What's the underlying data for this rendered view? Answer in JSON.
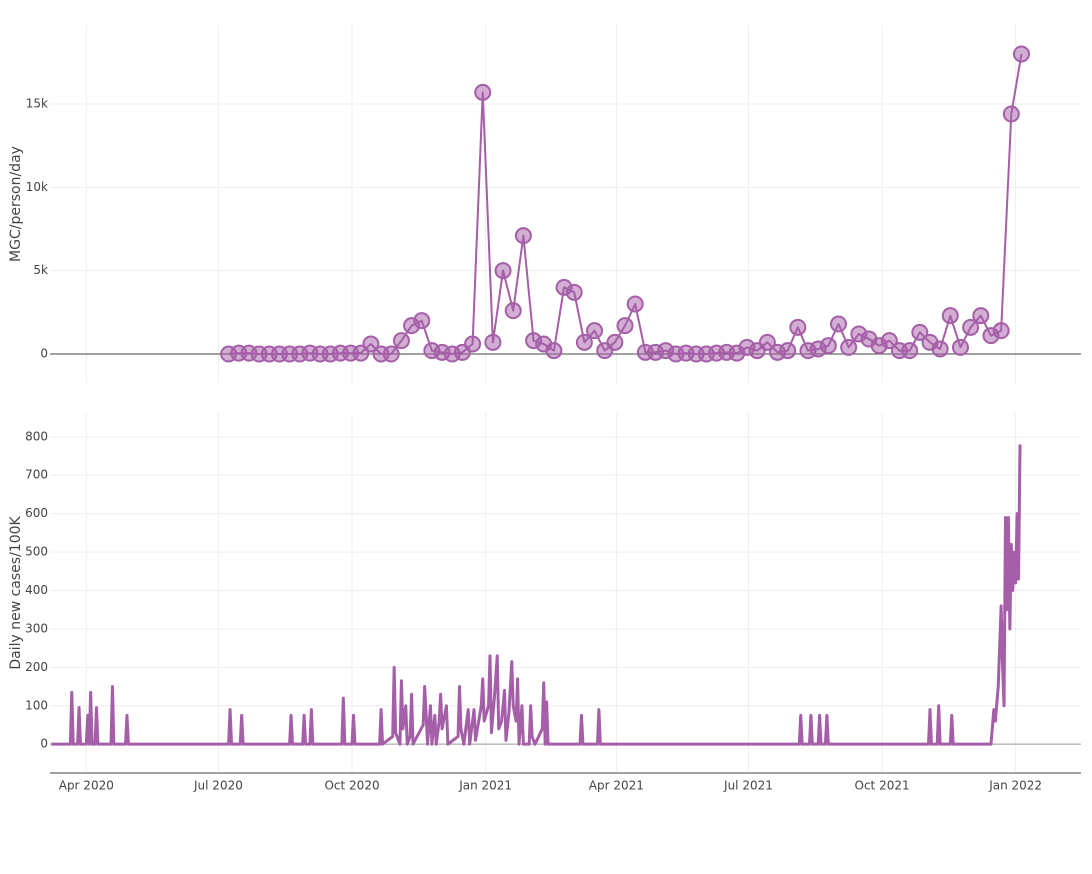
{
  "chart_data": [
    {
      "type": "line",
      "ylabel": "MGC/person/day",
      "markers": true,
      "color": "#a55ea8",
      "xlim": [
        "2020-03-07",
        "2022-02-15"
      ],
      "ylim": [
        -1740,
        19740
      ],
      "yticks": [
        0,
        {
          "value": 5000,
          "label": "5k"
        },
        {
          "value": 10000,
          "label": "10k"
        },
        {
          "value": 15000,
          "label": "15k"
        }
      ],
      "x": [
        "2020-07-08",
        "2020-07-15",
        "2020-07-22",
        "2020-07-29",
        "2020-08-05",
        "2020-08-12",
        "2020-08-19",
        "2020-08-26",
        "2020-09-02",
        "2020-09-09",
        "2020-09-16",
        "2020-09-23",
        "2020-09-30",
        "2020-10-07",
        "2020-10-14",
        "2020-10-21",
        "2020-10-28",
        "2020-11-04",
        "2020-11-11",
        "2020-11-18",
        "2020-11-25",
        "2020-12-02",
        "2020-12-09",
        "2020-12-16",
        "2020-12-23",
        "2020-12-30",
        "2021-01-06",
        "2021-01-13",
        "2021-01-20",
        "2021-01-27",
        "2021-02-03",
        "2021-02-10",
        "2021-02-17",
        "2021-02-24",
        "2021-03-03",
        "2021-03-10",
        "2021-03-17",
        "2021-03-24",
        "2021-03-31",
        "2021-04-07",
        "2021-04-14",
        "2021-04-21",
        "2021-04-28",
        "2021-05-05",
        "2021-05-12",
        "2021-05-19",
        "2021-05-26",
        "2021-06-02",
        "2021-06-09",
        "2021-06-16",
        "2021-06-23",
        "2021-06-30",
        "2021-07-07",
        "2021-07-14",
        "2021-07-21",
        "2021-07-28",
        "2021-08-04",
        "2021-08-11",
        "2021-08-18",
        "2021-08-25",
        "2021-09-01",
        "2021-09-08",
        "2021-09-15",
        "2021-09-22",
        "2021-09-29",
        "2021-10-06",
        "2021-10-13",
        "2021-10-20",
        "2021-10-27",
        "2021-11-03",
        "2021-11-10",
        "2021-11-17",
        "2021-11-24",
        "2021-12-01",
        "2021-12-08",
        "2021-12-15",
        "2021-12-22",
        "2021-12-29",
        "2022-01-05"
      ],
      "values": [
        0,
        50,
        50,
        0,
        0,
        0,
        0,
        0,
        50,
        0,
        0,
        50,
        50,
        50,
        600,
        0,
        0,
        800,
        1700,
        2000,
        200,
        100,
        0,
        100,
        600,
        15700,
        700,
        5000,
        2600,
        7100,
        800,
        600,
        200,
        4000,
        3700,
        700,
        1400,
        200,
        700,
        1700,
        3000,
        100,
        100,
        200,
        0,
        50,
        0,
        0,
        50,
        100,
        50,
        400,
        200,
        700,
        100,
        200,
        1600,
        200,
        300,
        500,
        1800,
        400,
        1200,
        900,
        500,
        800,
        200,
        200,
        1300,
        700,
        300,
        2300,
        400,
        1600,
        2300,
        1100,
        1400,
        14400,
        18000
      ]
    },
    {
      "type": "line",
      "ylabel": "Daily new cases/100K",
      "markers": false,
      "color": "#a55ea8",
      "xlim": [
        "2020-03-07",
        "2022-02-15"
      ],
      "ylim": [
        -75,
        862
      ],
      "yticks": [
        0,
        100,
        200,
        300,
        400,
        500,
        600,
        700,
        800
      ],
      "xticks": [
        {
          "value": "2020-04-01",
          "label": "Apr 2020"
        },
        {
          "value": "2020-07-01",
          "label": "Jul 2020"
        },
        {
          "value": "2020-10-01",
          "label": "Oct 2020"
        },
        {
          "value": "2021-01-01",
          "label": "Jan 2021"
        },
        {
          "value": "2021-04-01",
          "label": "Apr 2021"
        },
        {
          "value": "2021-07-01",
          "label": "Jul 2021"
        },
        {
          "value": "2021-10-01",
          "label": "Oct 2021"
        },
        {
          "value": "2022-01-01",
          "label": "Jan 2022"
        }
      ],
      "x": [
        "2020-03-08",
        "2020-03-21",
        "2020-03-22",
        "2020-03-23",
        "2020-03-26",
        "2020-03-27",
        "2020-03-28",
        "2020-04-01",
        "2020-04-02",
        "2020-04-03",
        "2020-04-04",
        "2020-04-05",
        "2020-04-07",
        "2020-04-08",
        "2020-04-09",
        "2020-04-18",
        "2020-04-19",
        "2020-04-20",
        "2020-04-28",
        "2020-04-29",
        "2020-04-30",
        "2020-07-08",
        "2020-07-09",
        "2020-07-10",
        "2020-07-16",
        "2020-07-17",
        "2020-07-18",
        "2020-08-19",
        "2020-08-20",
        "2020-08-21",
        "2020-08-28",
        "2020-08-29",
        "2020-08-30",
        "2020-09-02",
        "2020-09-03",
        "2020-09-04",
        "2020-09-24",
        "2020-09-25",
        "2020-09-26",
        "2020-10-01",
        "2020-10-02",
        "2020-10-03",
        "2020-10-20",
        "2020-10-21",
        "2020-10-22",
        "2020-10-29",
        "2020-10-30",
        "2020-10-31",
        "2020-11-03",
        "2020-11-04",
        "2020-11-05",
        "2020-11-07",
        "2020-11-08",
        "2020-11-10",
        "2020-11-11",
        "2020-11-12",
        "2020-11-19",
        "2020-11-20",
        "2020-11-21",
        "2020-11-22",
        "2020-11-24",
        "2020-11-25",
        "2020-11-27",
        "2020-11-28",
        "2020-11-30",
        "2020-12-01",
        "2020-12-02",
        "2020-12-05",
        "2020-12-06",
        "2020-12-13",
        "2020-12-14",
        "2020-12-15",
        "2020-12-17",
        "2020-12-20",
        "2020-12-21",
        "2020-12-24",
        "2020-12-25",
        "2020-12-29",
        "2020-12-30",
        "2020-12-31",
        "2021-01-03",
        "2021-01-04",
        "2021-01-05",
        "2021-01-07",
        "2021-01-09",
        "2021-01-10",
        "2021-01-12",
        "2021-01-14",
        "2021-01-15",
        "2021-01-17",
        "2021-01-19",
        "2021-01-20",
        "2021-01-22",
        "2021-01-23",
        "2021-01-24",
        "2021-01-26",
        "2021-01-27",
        "2021-01-31",
        "2021-02-01",
        "2021-02-02",
        "2021-02-04",
        "2021-02-09",
        "2021-02-10",
        "2021-02-11",
        "2021-02-12",
        "2021-02-13",
        "2021-03-07",
        "2021-03-08",
        "2021-03-09",
        "2021-03-19",
        "2021-03-20",
        "2021-03-21",
        "2021-08-05",
        "2021-08-06",
        "2021-08-07",
        "2021-08-12",
        "2021-08-13",
        "2021-08-14",
        "2021-08-18",
        "2021-08-19",
        "2021-08-20",
        "2021-08-23",
        "2021-08-24",
        "2021-08-25",
        "2021-11-02",
        "2021-11-03",
        "2021-11-04",
        "2021-11-08",
        "2021-11-09",
        "2021-11-10",
        "2021-11-17",
        "2021-11-18",
        "2021-11-19",
        "2021-12-15",
        "2021-12-17",
        "2021-12-18",
        "2021-12-20",
        "2021-12-22",
        "2021-12-23",
        "2021-12-24",
        "2021-12-25",
        "2021-12-26",
        "2021-12-27",
        "2021-12-28",
        "2021-12-29",
        "2021-12-30",
        "2021-12-31",
        "2022-01-01",
        "2022-01-02",
        "2022-01-03",
        "2022-01-04"
      ],
      "values": [
        0,
        0,
        135,
        0,
        0,
        95,
        0,
        0,
        75,
        0,
        135,
        0,
        0,
        95,
        0,
        0,
        150,
        0,
        0,
        75,
        0,
        0,
        90,
        0,
        0,
        75,
        0,
        0,
        75,
        0,
        0,
        75,
        0,
        0,
        90,
        0,
        0,
        120,
        0,
        0,
        75,
        0,
        0,
        90,
        0,
        20,
        200,
        30,
        0,
        165,
        40,
        100,
        0,
        20,
        130,
        0,
        50,
        150,
        80,
        0,
        100,
        0,
        75,
        0,
        60,
        130,
        40,
        100,
        0,
        20,
        150,
        40,
        0,
        90,
        0,
        90,
        10,
        100,
        170,
        60,
        100,
        230,
        30,
        120,
        230,
        40,
        60,
        140,
        10,
        80,
        215,
        100,
        60,
        170,
        0,
        100,
        0,
        0,
        100,
        20,
        0,
        40,
        160,
        0,
        110,
        0,
        0,
        75,
        0,
        0,
        90,
        0,
        0,
        75,
        0,
        0,
        75,
        0,
        0,
        75,
        0,
        0,
        75,
        0,
        0,
        90,
        0,
        0,
        100,
        0,
        0,
        75,
        0,
        0,
        90,
        60,
        150,
        360,
        200,
        100,
        590,
        350,
        590,
        300,
        520,
        400,
        500,
        420,
        600,
        430,
        780
      ]
    }
  ]
}
